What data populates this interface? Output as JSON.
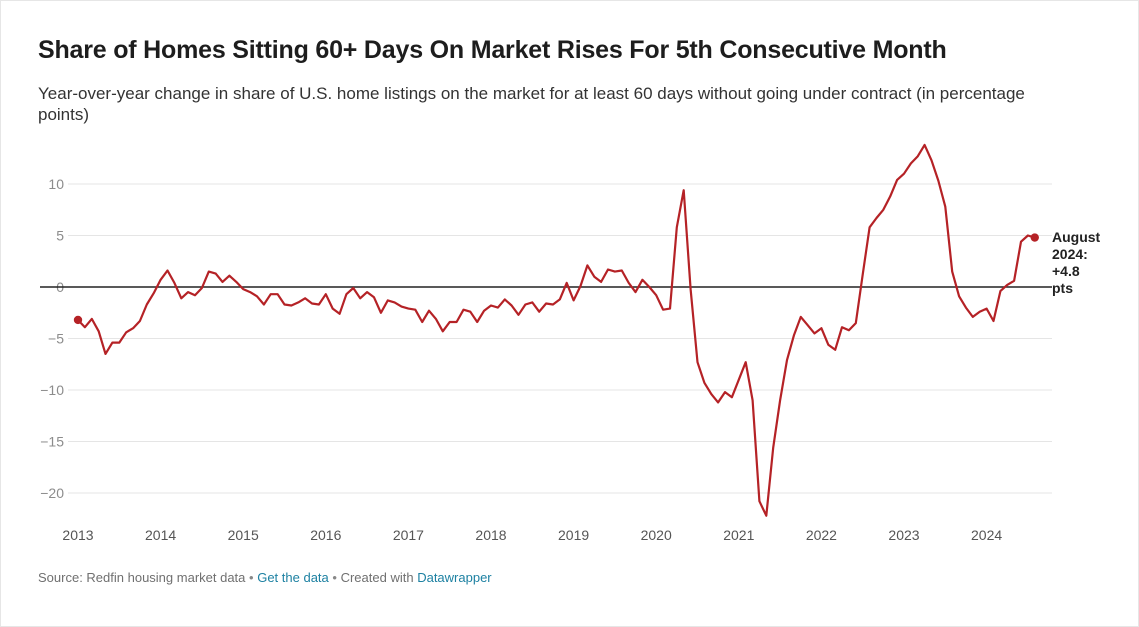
{
  "title": "Share of Homes Sitting 60+ Days On Market Rises For 5th Consecutive Month",
  "subtitle": "Year-over-year change in share of U.S. home listings on the market for at least 60 days without going under contract (in percentage points)",
  "footer": {
    "source": "Source: Redfin housing market data",
    "separator": "•",
    "get_data": "Get the data",
    "created_with": "Created with",
    "datawrapper": "Datawrapper"
  },
  "colors": {
    "line": "#b52226",
    "grid": "#e5e5e5",
    "zero": "#222222"
  },
  "chart_data": {
    "type": "line",
    "title": "Share of Homes Sitting 60+ Days On Market Rises For 5th Consecutive Month",
    "xlim": [
      2013,
      2024.75
    ],
    "ylim": [
      -22,
      13
    ],
    "y_ticks": [
      10,
      5,
      0,
      -5,
      -10,
      -15,
      -20
    ],
    "y_tick_labels": [
      "10",
      "5",
      "0",
      "−5",
      "−10",
      "−15",
      "−20"
    ],
    "x_ticks": [
      2013,
      2014,
      2015,
      2016,
      2017,
      2018,
      2019,
      2020,
      2021,
      2022,
      2023,
      2024
    ],
    "x_tick_labels": [
      "2013",
      "2014",
      "2015",
      "2016",
      "2017",
      "2018",
      "2019",
      "2020",
      "2021",
      "2022",
      "2023",
      "2024"
    ],
    "grid": true,
    "annotation": {
      "lines": [
        "August",
        "2024:",
        "+4.8",
        "pts"
      ],
      "x": 2024.583,
      "y": 4.8
    },
    "series": [
      {
        "x": [
          2013.0,
          2013.083,
          2013.167,
          2013.25,
          2013.333,
          2013.417,
          2013.5,
          2013.583,
          2013.667,
          2013.75,
          2013.833,
          2013.917,
          2014.0,
          2014.083,
          2014.167,
          2014.25,
          2014.333,
          2014.417,
          2014.5,
          2014.583,
          2014.667,
          2014.75,
          2014.833,
          2014.917,
          2015.0,
          2015.083,
          2015.167,
          2015.25,
          2015.333,
          2015.417,
          2015.5,
          2015.583,
          2015.667,
          2015.75,
          2015.833,
          2015.917,
          2016.0,
          2016.083,
          2016.167,
          2016.25,
          2016.333,
          2016.417,
          2016.5,
          2016.583,
          2016.667,
          2016.75,
          2016.833,
          2016.917,
          2017.0,
          2017.083,
          2017.167,
          2017.25,
          2017.333,
          2017.417,
          2017.5,
          2017.583,
          2017.667,
          2017.75,
          2017.833,
          2017.917,
          2018.0,
          2018.083,
          2018.167,
          2018.25,
          2018.333,
          2018.417,
          2018.5,
          2018.583,
          2018.667,
          2018.75,
          2018.833,
          2018.917,
          2019.0,
          2019.083,
          2019.167,
          2019.25,
          2019.333,
          2019.417,
          2019.5,
          2019.583,
          2019.667,
          2019.75,
          2019.833,
          2019.917,
          2020.0,
          2020.083,
          2020.167,
          2020.25,
          2020.333,
          2020.417,
          2020.5,
          2020.583,
          2020.667,
          2020.75,
          2020.833,
          2020.917,
          2021.0,
          2021.083,
          2021.167,
          2021.25,
          2021.333,
          2021.417,
          2021.5,
          2021.583,
          2021.667,
          2021.75,
          2021.833,
          2021.917,
          2022.0,
          2022.083,
          2022.167,
          2022.25,
          2022.333,
          2022.417,
          2022.5,
          2022.583,
          2022.667,
          2022.75,
          2022.833,
          2022.917,
          2023.0,
          2023.083,
          2023.167,
          2023.25,
          2023.333,
          2023.417,
          2023.5,
          2023.583,
          2023.667,
          2023.75,
          2023.833,
          2023.917,
          2024.0,
          2024.083,
          2024.167,
          2024.25,
          2024.333,
          2024.417,
          2024.5,
          2024.583
        ],
        "values": [
          -3.2,
          -3.9,
          -3.1,
          -4.3,
          -6.5,
          -5.4,
          -5.4,
          -4.4,
          -4.0,
          -3.3,
          -1.7,
          -0.6,
          0.7,
          1.6,
          0.4,
          -1.1,
          -0.5,
          -0.8,
          -0.1,
          1.5,
          1.3,
          0.5,
          1.1,
          0.5,
          -0.2,
          -0.5,
          -0.9,
          -1.7,
          -0.7,
          -0.7,
          -1.7,
          -1.8,
          -1.5,
          -1.1,
          -1.6,
          -1.7,
          -0.7,
          -2.1,
          -2.6,
          -0.7,
          -0.1,
          -1.1,
          -0.5,
          -1.0,
          -2.5,
          -1.3,
          -1.5,
          -1.9,
          -2.1,
          -2.2,
          -3.4,
          -2.3,
          -3.1,
          -4.3,
          -3.4,
          -3.4,
          -2.2,
          -2.4,
          -3.4,
          -2.3,
          -1.8,
          -2.0,
          -1.2,
          -1.8,
          -2.7,
          -1.7,
          -1.5,
          -2.4,
          -1.6,
          -1.7,
          -1.2,
          0.4,
          -1.3,
          0.1,
          2.1,
          1.0,
          0.5,
          1.7,
          1.5,
          1.6,
          0.4,
          -0.5,
          0.7,
          0.0,
          -0.8,
          -2.2,
          -2.1,
          5.8,
          9.4,
          -0.2,
          -7.3,
          -9.3,
          -10.4,
          -11.2,
          -10.2,
          -10.7,
          -9.0,
          -7.3,
          -11.0,
          -20.8,
          -22.2,
          -15.6,
          -11.0,
          -7.1,
          -4.7,
          -2.9,
          -3.7,
          -4.5,
          -4.0,
          -5.6,
          -6.1,
          -3.9,
          -4.2,
          -3.5,
          1.2,
          5.8,
          6.7,
          7.5,
          8.8,
          10.4,
          11.0,
          12.0,
          12.7,
          13.8,
          12.3,
          10.3,
          7.8,
          1.5,
          -0.9,
          -2.0,
          -2.9,
          -2.4,
          -2.1,
          -3.3,
          -0.4,
          0.2,
          0.6,
          4.4,
          5.0,
          4.8
        ]
      }
    ]
  }
}
